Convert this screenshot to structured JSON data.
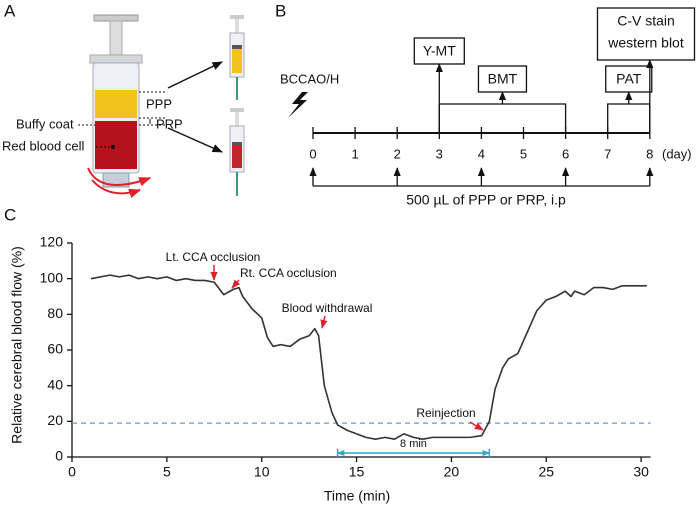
{
  "panel_labels": [
    "A",
    "B",
    "C"
  ],
  "panel_a": {
    "layers": [
      "PPP",
      "PRP"
    ],
    "buffy": "Buffy coat",
    "rbc": "Red blood cell"
  },
  "timeline": {
    "event": "BCCAO/H",
    "days": [
      0,
      1,
      2,
      3,
      4,
      5,
      6,
      7,
      8
    ],
    "unit": "(day)",
    "tests": [
      {
        "label": "Y-MT",
        "days": [
          3
        ]
      },
      {
        "label": "BMT",
        "days": [
          3,
          6
        ]
      },
      {
        "label": "PAT",
        "days": [
          7,
          8
        ]
      },
      {
        "label_lines": [
          "C-V stain",
          "western blot"
        ],
        "days": [
          8
        ]
      }
    ],
    "injection_days": [
      0,
      2,
      4,
      6,
      8
    ],
    "treatment": "500 µL of PPP or PRP, i.p"
  },
  "chart_data": {
    "type": "line",
    "x_label": "Time (min)",
    "y_label": "Relative cerebral blood flow (%)",
    "x": [
      1,
      1.5,
      2,
      2.5,
      3,
      3.5,
      4,
      4.5,
      5,
      5.5,
      6,
      6.5,
      7,
      7.5,
      8,
      8.5,
      8.8,
      9,
      9.5,
      10,
      10.3,
      10.6,
      11,
      11.5,
      12,
      12.5,
      12.8,
      13,
      13.3,
      13.7,
      14,
      14.5,
      15,
      15.5,
      16,
      16.5,
      17,
      17.5,
      18,
      18.5,
      19,
      20,
      21,
      21.6,
      22,
      22.3,
      22.7,
      23,
      23.5,
      24,
      24.5,
      25,
      25.5,
      26,
      26.3,
      26.5,
      27,
      27.5,
      28,
      28.5,
      29,
      30,
      30.3
    ],
    "values": [
      100,
      101,
      102,
      101,
      102,
      100,
      101,
      100,
      101,
      99,
      100,
      99,
      99,
      98,
      91,
      94,
      95,
      90,
      83,
      78,
      67,
      62,
      63,
      62,
      66,
      68,
      72,
      68,
      40,
      25,
      18,
      15,
      13,
      11,
      10,
      11,
      10,
      13,
      11,
      10,
      11,
      11,
      11,
      12,
      20,
      38,
      50,
      55,
      58,
      70,
      82,
      88,
      90,
      93,
      90,
      93,
      91,
      95,
      95,
      94,
      96,
      96,
      96
    ],
    "color": "#333333",
    "xlim": [
      0,
      30.5
    ],
    "ylim": [
      0,
      120
    ],
    "xticks": [
      0,
      5,
      10,
      15,
      20,
      25,
      30
    ],
    "yticks": [
      0,
      20,
      40,
      60,
      80,
      100,
      120
    ],
    "reference_line": 19,
    "interval": {
      "label": "8 min",
      "start": 14,
      "end": 22
    },
    "annotations": [
      "Lt. CCA occlusion",
      "Rt. CCA occlusion",
      "Blood withdrawal",
      "Reinjection"
    ]
  }
}
